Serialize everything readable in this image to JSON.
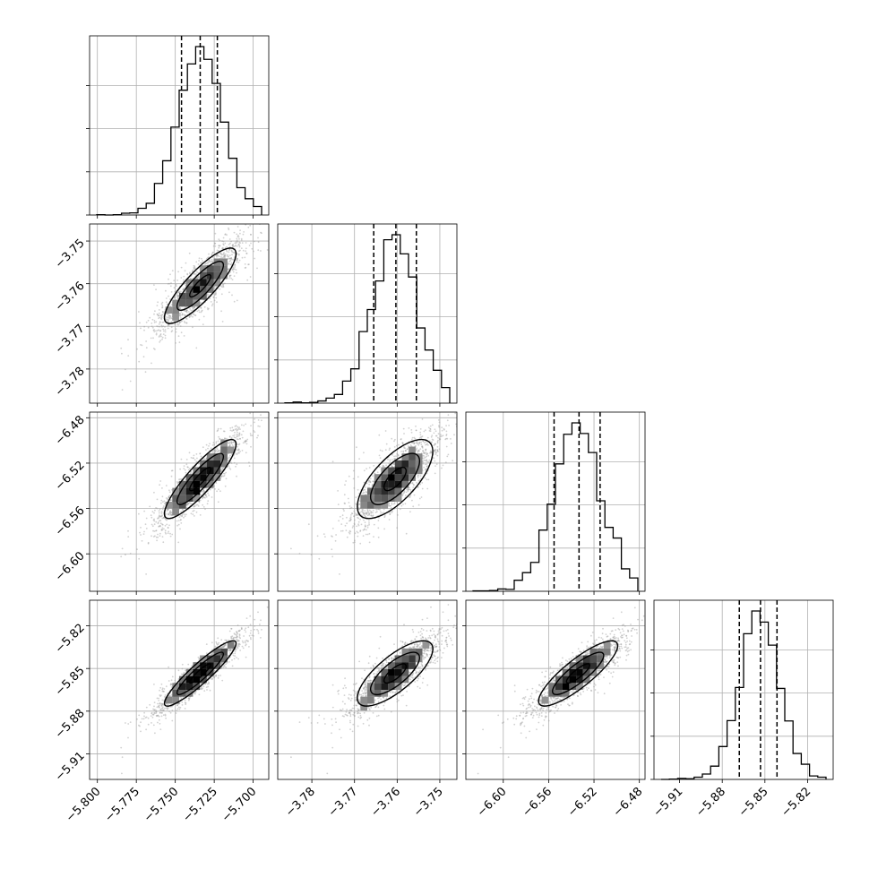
{
  "chart_data": {
    "type": "corner",
    "grid": true,
    "params": [
      {
        "range": [
          -5.805,
          -5.69
        ],
        "ticks": [
          "−5.800",
          "−5.775",
          "−5.750",
          "−5.725",
          "−5.700"
        ],
        "tick_values": [
          -5.8,
          -5.775,
          -5.75,
          -5.725,
          -5.7
        ],
        "quantiles": [
          -5.746,
          -5.734,
          -5.723
        ],
        "mean": -5.734,
        "sd": 0.0135
      },
      {
        "range": [
          -3.788,
          -3.746
        ],
        "ticks": [
          "−3.78",
          "−3.77",
          "−3.76",
          "−3.75"
        ],
        "tick_values": [
          -3.78,
          -3.77,
          -3.76,
          -3.75
        ],
        "quantiles": [
          -3.7655,
          -3.7603,
          -3.7555
        ],
        "mean": -3.7605,
        "sd": 0.0052
      },
      {
        "range": [
          -6.633,
          -6.475
        ],
        "ticks": [
          "−6.60",
          "−6.56",
          "−6.52",
          "−6.48"
        ],
        "tick_values": [
          -6.6,
          -6.56,
          -6.52,
          -6.48
        ],
        "quantiles": [
          -6.5552,
          -6.5332,
          -6.5146
        ],
        "mean": -6.534,
        "sd": 0.0205
      },
      {
        "range": [
          -5.928,
          -5.802
        ],
        "ticks": [
          "−5.91",
          "−5.88",
          "−5.85",
          "−5.82"
        ],
        "tick_values": [
          -5.91,
          -5.88,
          -5.85,
          -5.82
        ],
        "quantiles": [
          -5.868,
          -5.8531,
          -5.8415
        ],
        "mean": -5.8535,
        "sd": 0.0135
      }
    ],
    "correlations": {
      "1-0": 0.85,
      "2-0": 0.88,
      "2-1": 0.7,
      "3-0": 0.92,
      "3-1": 0.75,
      "3-2": 0.85
    },
    "histogram_bins": 20,
    "series_color": "#000000",
    "scatter_color": "#9a9a9a"
  }
}
